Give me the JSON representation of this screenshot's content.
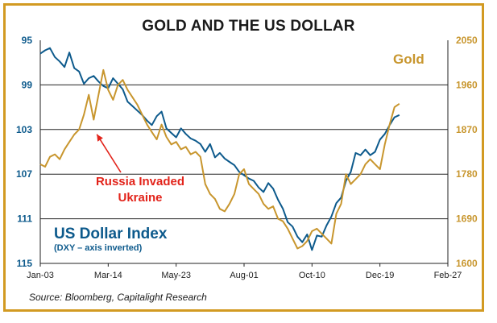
{
  "title": "GOLD AND THE US DOLLAR",
  "source": "Source: Bloomberg, Capitalight Research",
  "annotation_lines": [
    "Russia Invaded",
    "Ukraine"
  ],
  "legend": {
    "gold": "Gold",
    "usd": "US Dollar Index",
    "usd_sub": "(DXY – axis inverted)"
  },
  "colors": {
    "frame": "#d29a22",
    "usd": "#0d5a8c",
    "gold": "#c8962e",
    "annotation": "#e2231a",
    "grid": "#222222"
  },
  "chart_data": {
    "type": "line",
    "x_tick_labels": [
      "Jan-03",
      "Mar-14",
      "May-23",
      "Aug-01",
      "Oct-10",
      "Dec-19",
      "Feb-27"
    ],
    "x_tick_days": [
      0,
      70,
      140,
      210,
      280,
      350,
      420
    ],
    "x_unit": "day offset from Jan-03",
    "left_axis": {
      "label": "US Dollar Index",
      "inverted": true,
      "range": [
        95,
        115
      ],
      "ticks": [
        "95",
        "99",
        "103",
        "107",
        "111",
        "115"
      ]
    },
    "right_axis": {
      "label": "Gold",
      "range": [
        1600,
        2050
      ],
      "ticks": [
        "2050",
        "1960",
        "1870",
        "1780",
        "1690",
        "1600"
      ]
    },
    "grid": "horizontal",
    "annotation": {
      "text": "Russia Invaded Ukraine",
      "x_day": 55,
      "value_gold": 1870
    },
    "series": [
      {
        "name": "US Dollar Index",
        "axis": "left",
        "x": [
          0,
          5,
          10,
          15,
          20,
          25,
          30,
          35,
          40,
          45,
          50,
          55,
          60,
          65,
          70,
          75,
          80,
          85,
          90,
          95,
          100,
          105,
          110,
          115,
          120,
          125,
          130,
          135,
          140,
          145,
          150,
          155,
          160,
          165,
          170,
          175,
          180,
          185,
          190,
          195,
          200,
          205,
          210,
          215,
          220,
          225,
          230,
          235,
          240,
          245,
          250,
          255,
          260,
          265,
          270,
          275,
          280,
          285,
          290,
          295,
          300,
          305,
          310,
          315,
          320,
          325,
          330,
          335,
          340,
          345,
          350,
          355,
          360,
          365,
          370
        ],
        "values": [
          96.2,
          95.9,
          95.7,
          96.5,
          96.9,
          97.4,
          96.1,
          97.5,
          97.8,
          98.9,
          98.4,
          98.2,
          98.7,
          99.1,
          99.3,
          98.4,
          98.9,
          99.4,
          100.5,
          100.9,
          101.3,
          101.7,
          102.2,
          102.6,
          101.8,
          101.4,
          102.9,
          103.3,
          103.7,
          102.9,
          103.4,
          103.8,
          104.0,
          104.3,
          105.0,
          104.3,
          105.5,
          105.1,
          105.6,
          105.9,
          106.2,
          106.8,
          107.1,
          107.4,
          107.6,
          108.2,
          108.6,
          107.8,
          108.3,
          109.3,
          110.1,
          111.3,
          111.7,
          112.6,
          113.1,
          112.4,
          113.8,
          112.5,
          112.6,
          111.6,
          110.8,
          109.6,
          109.1,
          107.6,
          106.8,
          105.1,
          105.3,
          104.8,
          105.3,
          105.0,
          103.9,
          103.4,
          102.6,
          101.9,
          101.7
        ]
      },
      {
        "name": "Gold",
        "axis": "right",
        "x": [
          0,
          5,
          10,
          15,
          20,
          25,
          30,
          35,
          40,
          45,
          50,
          55,
          60,
          65,
          70,
          75,
          80,
          85,
          90,
          95,
          100,
          105,
          110,
          115,
          120,
          125,
          130,
          135,
          140,
          145,
          150,
          155,
          160,
          165,
          170,
          175,
          180,
          185,
          190,
          195,
          200,
          205,
          210,
          215,
          220,
          225,
          230,
          235,
          240,
          245,
          250,
          255,
          260,
          265,
          270,
          275,
          280,
          285,
          290,
          295,
          300,
          305,
          310,
          315,
          320,
          325,
          330,
          335,
          340,
          345,
          350,
          355,
          360,
          365,
          370
        ],
        "values": [
          1800,
          1795,
          1815,
          1820,
          1810,
          1830,
          1845,
          1860,
          1870,
          1900,
          1940,
          1890,
          1940,
          1990,
          1950,
          1930,
          1960,
          1970,
          1950,
          1935,
          1920,
          1900,
          1880,
          1865,
          1850,
          1880,
          1855,
          1840,
          1845,
          1830,
          1835,
          1820,
          1825,
          1815,
          1760,
          1740,
          1730,
          1710,
          1705,
          1720,
          1740,
          1780,
          1790,
          1760,
          1750,
          1740,
          1720,
          1710,
          1715,
          1690,
          1685,
          1670,
          1650,
          1630,
          1635,
          1645,
          1665,
          1670,
          1660,
          1650,
          1640,
          1700,
          1720,
          1780,
          1760,
          1770,
          1780,
          1800,
          1810,
          1800,
          1790,
          1840,
          1880,
          1915,
          1922
        ]
      }
    ]
  }
}
